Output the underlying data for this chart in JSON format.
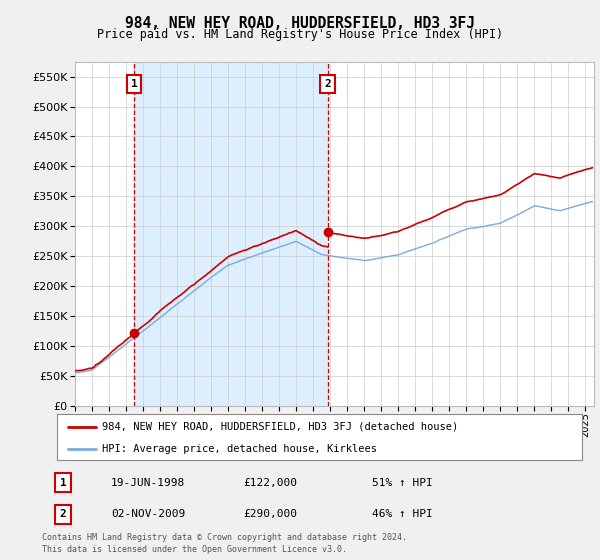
{
  "title": "984, NEW HEY ROAD, HUDDERSFIELD, HD3 3FJ",
  "subtitle": "Price paid vs. HM Land Registry's House Price Index (HPI)",
  "ylabel_ticks": [
    0,
    50000,
    100000,
    150000,
    200000,
    250000,
    300000,
    350000,
    400000,
    450000,
    500000,
    550000
  ],
  "ylim": [
    0,
    575000
  ],
  "xlim_start": 1995.0,
  "xlim_end": 2025.5,
  "sale1_date": 1998.47,
  "sale1_price": 122000,
  "sale1_label": "1",
  "sale1_text": "19-JUN-1998",
  "sale1_paid": "£122,000",
  "sale1_hpi": "51% ↑ HPI",
  "sale2_date": 2009.84,
  "sale2_price": 290000,
  "sale2_label": "2",
  "sale2_text": "02-NOV-2009",
  "sale2_paid": "£290,000",
  "sale2_hpi": "46% ↑ HPI",
  "red_color": "#cc0000",
  "blue_color": "#7aabdc",
  "shade_color": "#ddeeff",
  "legend1": "984, NEW HEY ROAD, HUDDERSFIELD, HD3 3FJ (detached house)",
  "legend2": "HPI: Average price, detached house, Kirklees",
  "footnote1": "Contains HM Land Registry data © Crown copyright and database right 2024.",
  "footnote2": "This data is licensed under the Open Government Licence v3.0.",
  "background_color": "#f0f0f0",
  "plot_bg_color": "#ffffff",
  "grid_color": "#cccccc"
}
